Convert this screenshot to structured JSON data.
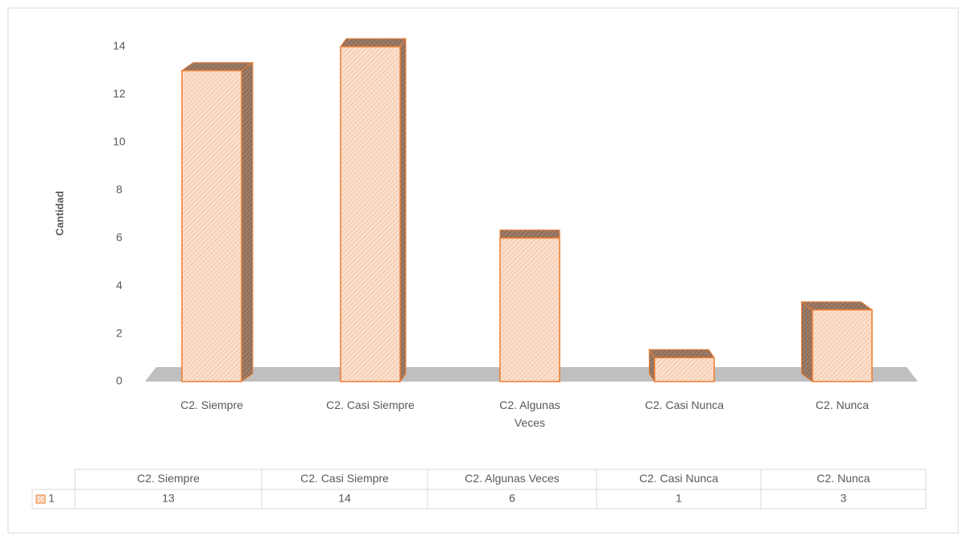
{
  "chart_data": {
    "type": "bar3d",
    "ylabel": "Cantidad",
    "categories": [
      "C2. Siempre",
      "C2. Casi Siempre",
      "C2. Algunas Veces",
      "C2. Casi Nunca",
      "C2. Nunca"
    ],
    "series": [
      {
        "name": "1",
        "color": "#ed7d31",
        "values": [
          13,
          14,
          6,
          1,
          3
        ]
      }
    ],
    "ylim": [
      0,
      14
    ],
    "yticks": [
      0,
      2,
      4,
      6,
      8,
      10,
      12,
      14
    ],
    "grid": false,
    "data_table": true
  }
}
